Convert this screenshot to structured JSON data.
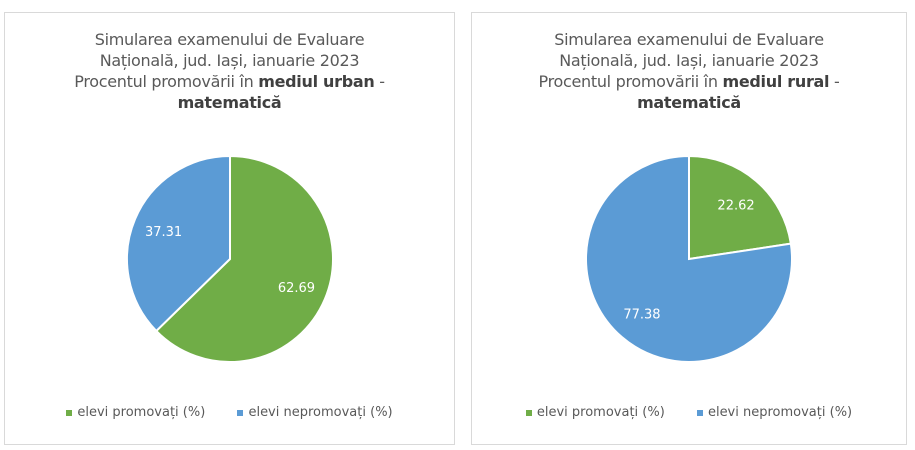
{
  "colors": {
    "promoted": "#70ad47",
    "not_promoted": "#5b9bd5"
  },
  "chart_data": [
    {
      "type": "pie",
      "title_lines": [
        "Simularea examenului de Evaluare",
        "Națională, jud. Iași, ianuarie 2023"
      ],
      "title_prefix": "Procentul promovării în ",
      "title_bold": "mediul urban",
      "title_dash": " -",
      "title_bold2": "matematică",
      "categories": [
        "elevi promovați (%)",
        "elevi nepromovați (%)"
      ],
      "values": [
        62.69,
        37.31
      ],
      "labels": [
        "62.69",
        "37.31"
      ],
      "legend": "bottom"
    },
    {
      "type": "pie",
      "title_lines": [
        "Simularea examenului de Evaluare",
        "Națională, jud. Iași, ianuarie 2023"
      ],
      "title_prefix": "Procentul promovării în ",
      "title_bold": "mediul rural",
      "title_dash": " -",
      "title_bold2": "matematică",
      "categories": [
        "elevi promovați (%)",
        "elevi nepromovați (%)"
      ],
      "values": [
        22.62,
        77.38
      ],
      "labels": [
        "22.62",
        "77.38"
      ],
      "legend": "bottom"
    }
  ]
}
